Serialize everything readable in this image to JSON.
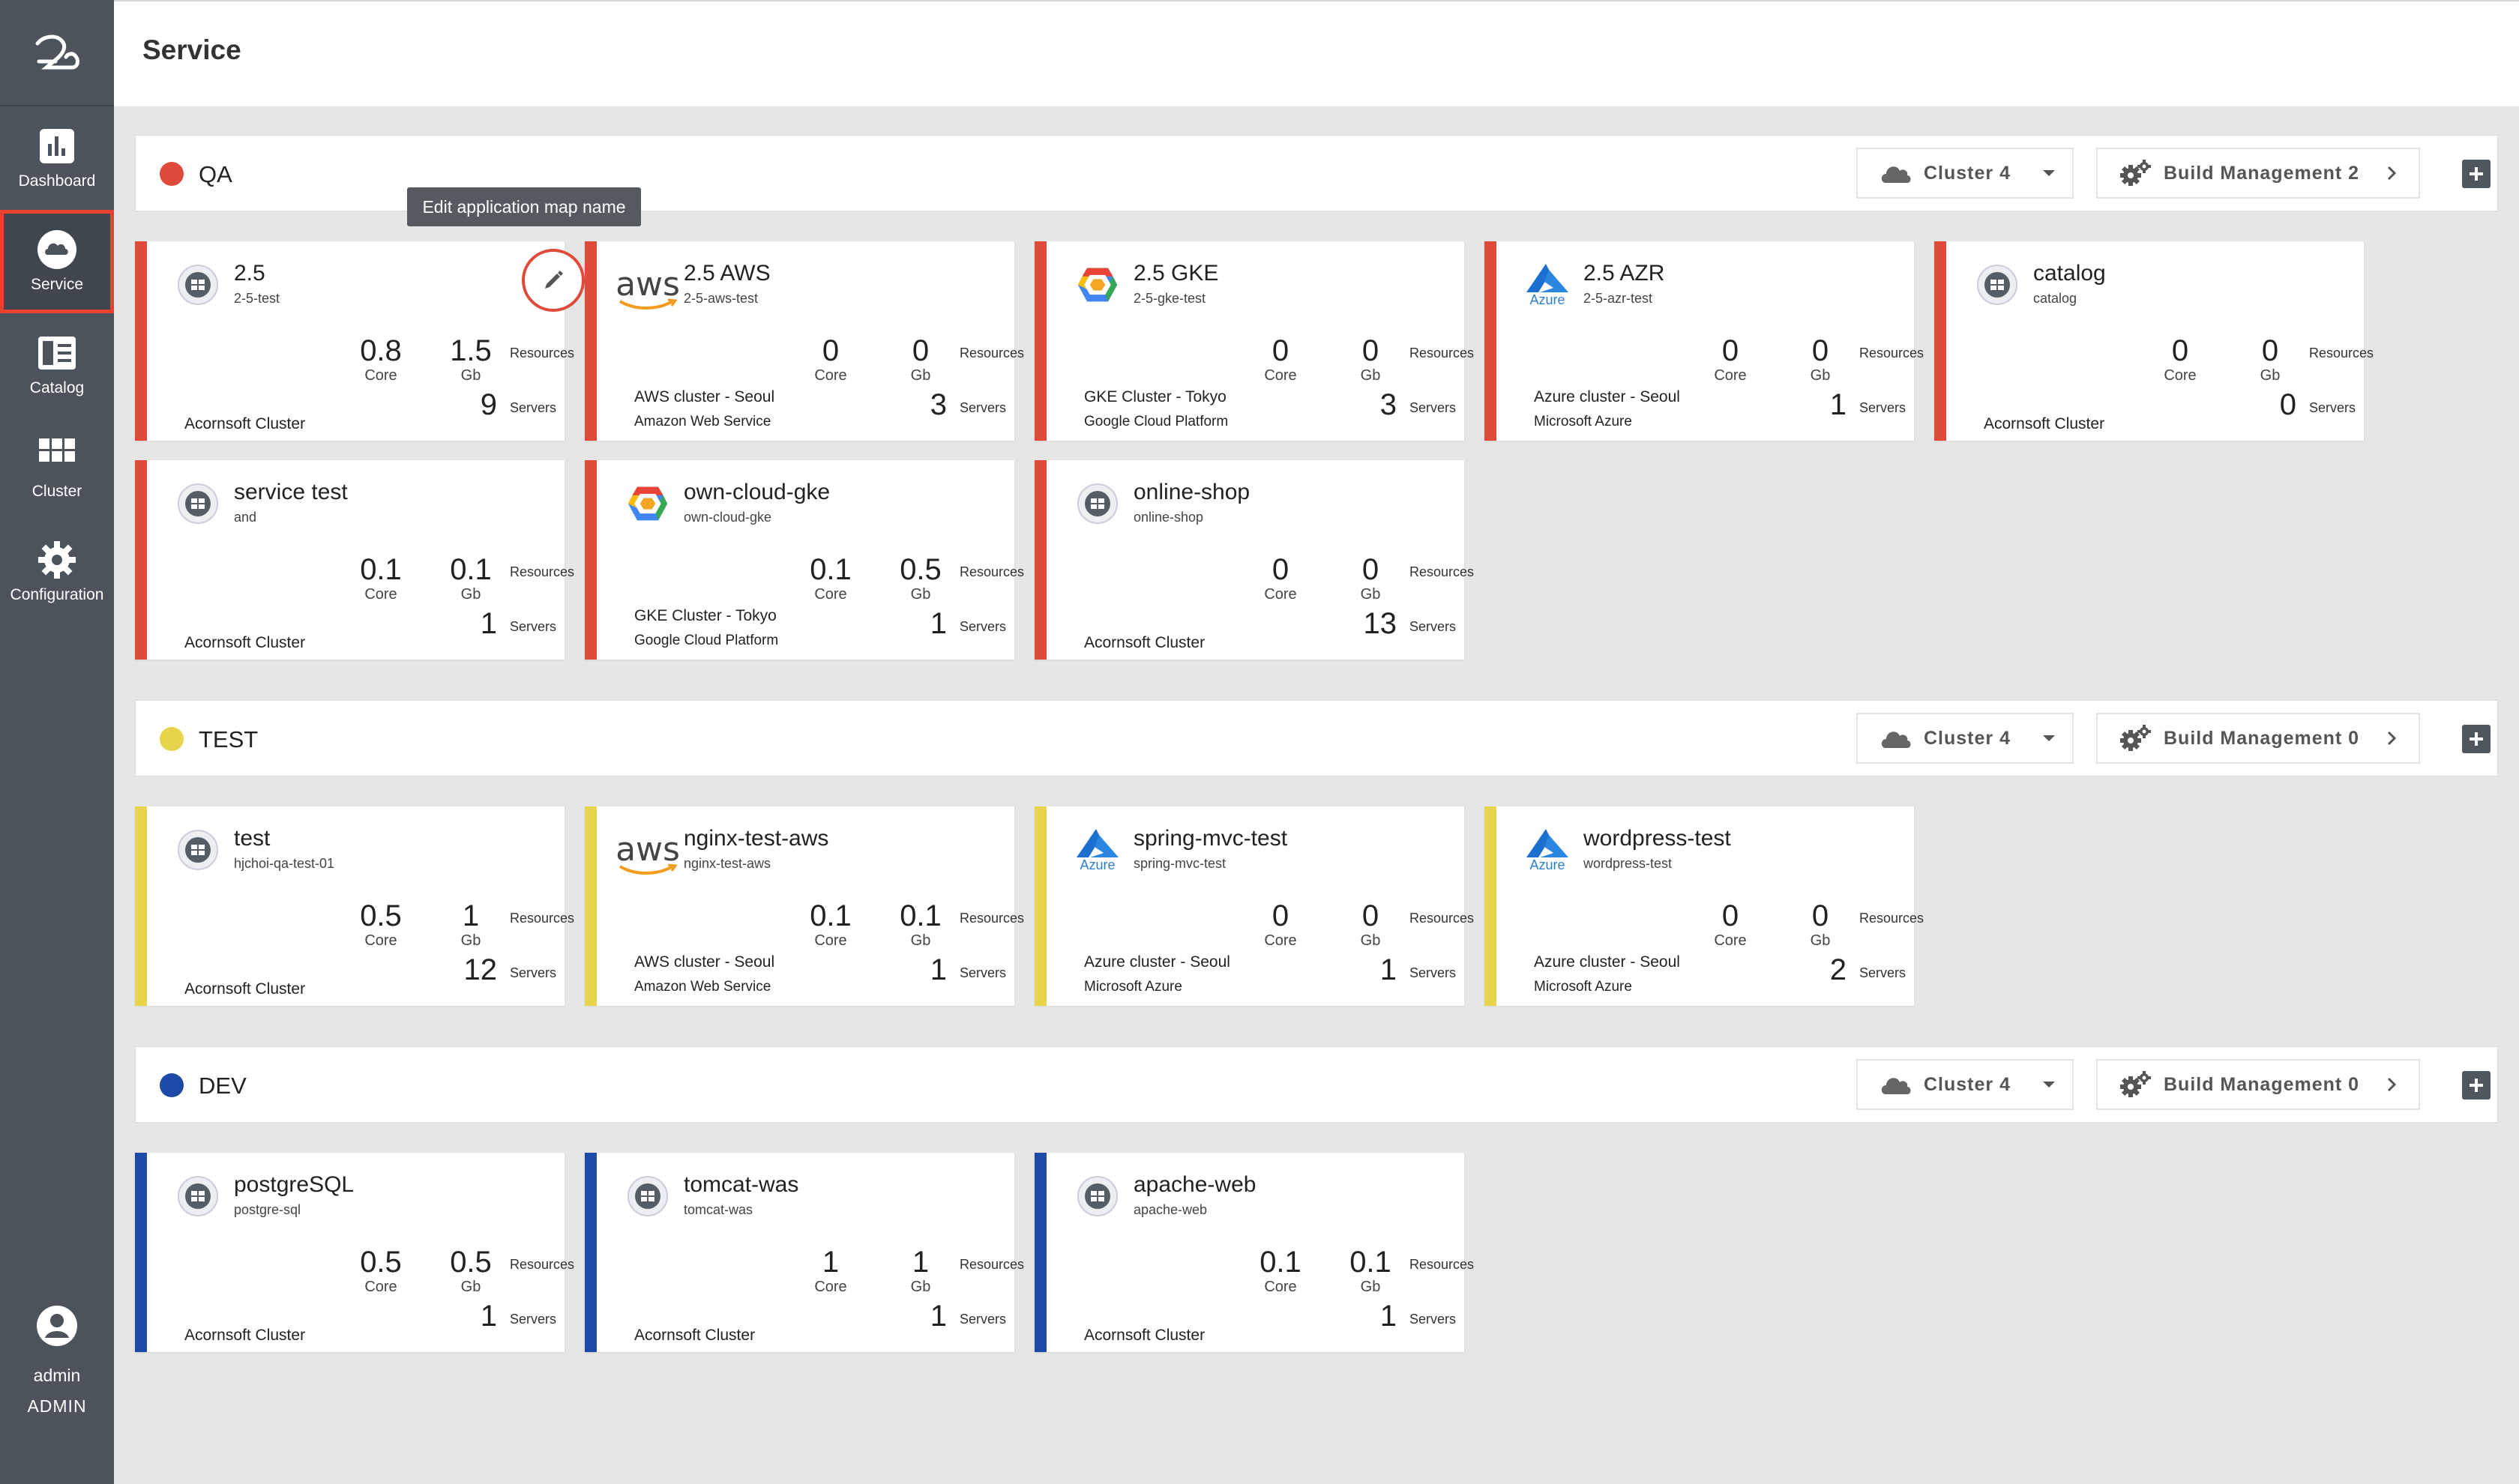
{
  "header": {
    "title": "Service"
  },
  "sidebar": {
    "items": [
      {
        "label": "Dashboard",
        "icon": "bar-chart-icon"
      },
      {
        "label": "Service",
        "icon": "cloud-icon",
        "active": true
      },
      {
        "label": "Catalog",
        "icon": "book-icon"
      },
      {
        "label": "Cluster",
        "icon": "grid-icon"
      },
      {
        "label": "Configuration",
        "icon": "gear-icon"
      }
    ],
    "user": {
      "name": "admin",
      "role": "ADMIN"
    }
  },
  "tooltip": "Edit application map name",
  "labels": {
    "core": "Core",
    "gb": "Gb",
    "resources": "Resources",
    "servers": "Servers"
  },
  "colors": {
    "qa": "#e04a3a",
    "test": "#e8d44a",
    "dev": "#1f49a6",
    "sidebar": "#4c535c"
  },
  "groups": [
    {
      "name": "QA",
      "cluster": "Cluster 4",
      "build": "Build Management 2",
      "cards": [
        {
          "title": "2.5",
          "sub": "2-5-test",
          "icon": "generic",
          "core": "0.8",
          "gb": "1.5",
          "servers": "9",
          "loc1": "",
          "loc2": "Acornsoft Cluster"
        },
        {
          "title": "2.5 AWS",
          "sub": "2-5-aws-test",
          "icon": "aws",
          "core": "0",
          "gb": "0",
          "servers": "3",
          "loc1": "AWS cluster - Seoul",
          "loc2": "Amazon Web Service"
        },
        {
          "title": "2.5 GKE",
          "sub": "2-5-gke-test",
          "icon": "gke",
          "core": "0",
          "gb": "0",
          "servers": "3",
          "loc1": "GKE Cluster - Tokyo",
          "loc2": "Google Cloud Platform"
        },
        {
          "title": "2.5 AZR",
          "sub": "2-5-azr-test",
          "icon": "azure",
          "core": "0",
          "gb": "0",
          "servers": "1",
          "loc1": "Azure cluster - Seoul",
          "loc2": "Microsoft Azure"
        },
        {
          "title": "catalog",
          "sub": "catalog",
          "icon": "generic",
          "core": "0",
          "gb": "0",
          "servers": "0",
          "loc1": "",
          "loc2": "Acornsoft Cluster"
        },
        {
          "title": "service test",
          "sub": "and",
          "icon": "generic",
          "core": "0.1",
          "gb": "0.1",
          "servers": "1",
          "loc1": "",
          "loc2": "Acornsoft Cluster"
        },
        {
          "title": "own-cloud-gke",
          "sub": "own-cloud-gke",
          "icon": "gke",
          "core": "0.1",
          "gb": "0.5",
          "servers": "1",
          "loc1": "GKE Cluster - Tokyo",
          "loc2": "Google Cloud Platform"
        },
        {
          "title": "online-shop",
          "sub": "online-shop",
          "icon": "generic",
          "core": "0",
          "gb": "0",
          "servers": "13",
          "loc1": "",
          "loc2": "Acornsoft Cluster"
        }
      ]
    },
    {
      "name": "TEST",
      "cluster": "Cluster 4",
      "build": "Build Management 0",
      "cards": [
        {
          "title": "test",
          "sub": "hjchoi-qa-test-01",
          "icon": "generic",
          "core": "0.5",
          "gb": "1",
          "servers": "12",
          "loc1": "",
          "loc2": "Acornsoft Cluster"
        },
        {
          "title": "nginx-test-aws",
          "sub": "nginx-test-aws",
          "icon": "aws",
          "core": "0.1",
          "gb": "0.1",
          "servers": "1",
          "loc1": "AWS cluster - Seoul",
          "loc2": "Amazon Web Service"
        },
        {
          "title": "spring-mvc-test",
          "sub": "spring-mvc-test",
          "icon": "azure",
          "core": "0",
          "gb": "0",
          "servers": "1",
          "loc1": "Azure cluster - Seoul",
          "loc2": "Microsoft Azure"
        },
        {
          "title": "wordpress-test",
          "sub": "wordpress-test",
          "icon": "azure",
          "core": "0",
          "gb": "0",
          "servers": "2",
          "loc1": "Azure cluster - Seoul",
          "loc2": "Microsoft Azure"
        }
      ]
    },
    {
      "name": "DEV",
      "cluster": "Cluster 4",
      "build": "Build Management 0",
      "cards": [
        {
          "title": "postgreSQL",
          "sub": "postgre-sql",
          "icon": "generic",
          "core": "0.5",
          "gb": "0.5",
          "servers": "1",
          "loc1": "",
          "loc2": "Acornsoft Cluster"
        },
        {
          "title": "tomcat-was",
          "sub": "tomcat-was",
          "icon": "generic",
          "core": "1",
          "gb": "1",
          "servers": "1",
          "loc1": "",
          "loc2": "Acornsoft Cluster"
        },
        {
          "title": "apache-web",
          "sub": "apache-web",
          "icon": "generic",
          "core": "0.1",
          "gb": "0.1",
          "servers": "1",
          "loc1": "",
          "loc2": "Acornsoft Cluster"
        }
      ]
    }
  ]
}
